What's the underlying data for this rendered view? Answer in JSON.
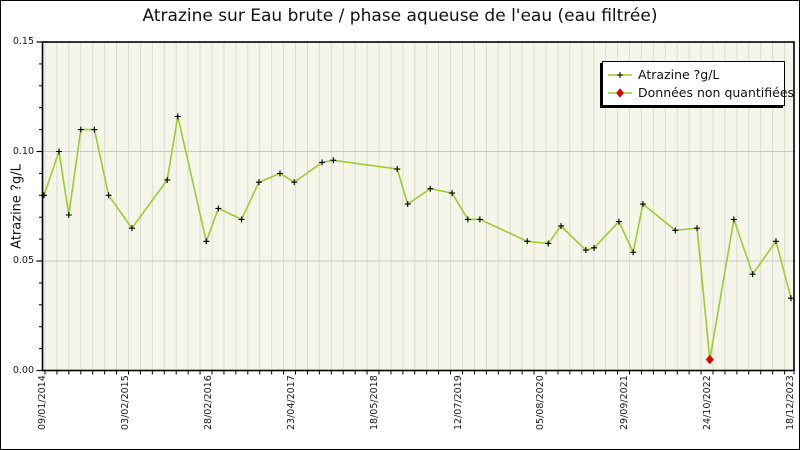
{
  "chart_data": {
    "type": "line",
    "title": "Atrazine sur Eau brute / phase aqueuse de l'eau (eau filtrée)",
    "ylabel": "Atrazine ?g/L",
    "xlabel": "",
    "ylim": [
      0,
      0.15
    ],
    "grid": {
      "vertical_minor_lines": 63,
      "horizontal_gridline_values": [
        0.05,
        0.1
      ]
    },
    "y_ticks": {
      "values": [
        0,
        0.05,
        0.1,
        0.15
      ],
      "labels": [
        "0.00",
        "0.05",
        "0.10",
        "0.15"
      ],
      "minor_step": 0.01
    },
    "x_ticks": {
      "labels": [
        "09/01/2014",
        "03/02/2015",
        "28/02/2016",
        "23/04/2017",
        "18/05/2018",
        "12/07/2019",
        "05/08/2020",
        "29/09/2021",
        "24/10/2022",
        "18/12/2023"
      ],
      "fracs": [
        0.0,
        0.111,
        0.221,
        0.332,
        0.443,
        0.554,
        0.664,
        0.775,
        0.886,
        0.996
      ]
    },
    "colors": {
      "line": "#9ACD32",
      "marker": "#000000",
      "non_quantified": "#DD0000",
      "plot_bg": "#F5F5EA",
      "grid_vertical": "#DBDBD2",
      "grid_horizontal": "#C9C9C9",
      "frame": "#000000"
    },
    "legend": {
      "position": "top-right",
      "entries": [
        {
          "label": "Atrazine ?g/L",
          "marker": "black-plus-on-green-line"
        },
        {
          "label": "Données non quantifiées",
          "marker": "red-diamond-on-green-line"
        }
      ]
    },
    "series": [
      {
        "name": "Atrazine ?g/L",
        "points": [
          {
            "x": 0.002,
            "y": 0.08,
            "q": true
          },
          {
            "x": 0.022,
            "y": 0.1,
            "q": true
          },
          {
            "x": 0.035,
            "y": 0.071,
            "q": true
          },
          {
            "x": 0.051,
            "y": 0.11,
            "q": true
          },
          {
            "x": 0.069,
            "y": 0.11,
            "q": true
          },
          {
            "x": 0.088,
            "y": 0.08,
            "q": true
          },
          {
            "x": 0.119,
            "y": 0.065,
            "q": true
          },
          {
            "x": 0.166,
            "y": 0.087,
            "q": true
          },
          {
            "x": 0.18,
            "y": 0.116,
            "q": true
          },
          {
            "x": 0.218,
            "y": 0.059,
            "q": true
          },
          {
            "x": 0.234,
            "y": 0.074,
            "q": true
          },
          {
            "x": 0.265,
            "y": 0.069,
            "q": true
          },
          {
            "x": 0.288,
            "y": 0.086,
            "q": true
          },
          {
            "x": 0.316,
            "y": 0.09,
            "q": true
          },
          {
            "x": 0.335,
            "y": 0.086,
            "q": true
          },
          {
            "x": 0.372,
            "y": 0.095,
            "q": true
          },
          {
            "x": 0.387,
            "y": 0.096,
            "q": true
          },
          {
            "x": 0.472,
            "y": 0.092,
            "q": true
          },
          {
            "x": 0.486,
            "y": 0.076,
            "q": true
          },
          {
            "x": 0.516,
            "y": 0.083,
            "q": true
          },
          {
            "x": 0.545,
            "y": 0.081,
            "q": true
          },
          {
            "x": 0.566,
            "y": 0.069,
            "q": true
          },
          {
            "x": 0.582,
            "y": 0.069,
            "q": true
          },
          {
            "x": 0.645,
            "y": 0.059,
            "q": true
          },
          {
            "x": 0.673,
            "y": 0.058,
            "q": true
          },
          {
            "x": 0.69,
            "y": 0.066,
            "q": true
          },
          {
            "x": 0.723,
            "y": 0.055,
            "q": true
          },
          {
            "x": 0.734,
            "y": 0.056,
            "q": true
          },
          {
            "x": 0.767,
            "y": 0.068,
            "q": true
          },
          {
            "x": 0.786,
            "y": 0.054,
            "q": true
          },
          {
            "x": 0.799,
            "y": 0.076,
            "q": true
          },
          {
            "x": 0.842,
            "y": 0.064,
            "q": true
          },
          {
            "x": 0.871,
            "y": 0.065,
            "q": true
          },
          {
            "x": 0.888,
            "y": 0.005,
            "q": false
          },
          {
            "x": 0.92,
            "y": 0.069,
            "q": true
          },
          {
            "x": 0.945,
            "y": 0.044,
            "q": true
          },
          {
            "x": 0.976,
            "y": 0.059,
            "q": true
          },
          {
            "x": 0.996,
            "y": 0.033,
            "q": true
          }
        ]
      }
    ]
  }
}
